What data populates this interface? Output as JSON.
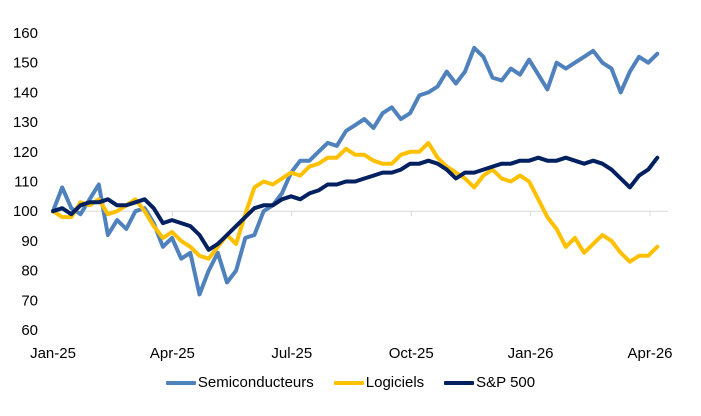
{
  "chart_data": {
    "type": "line",
    "title": "",
    "xlabel": "",
    "ylabel": "",
    "ylim": [
      60,
      160
    ],
    "yticks": [
      60,
      70,
      80,
      90,
      100,
      110,
      120,
      130,
      140,
      150,
      160
    ],
    "ytick_labels": [
      "60",
      "70",
      "80",
      "90",
      "100",
      "110",
      "120",
      "130",
      "140",
      "150",
      "160"
    ],
    "xticks": [
      "Jan-25",
      "Apr-25",
      "Jul-25",
      "Oct-25",
      "Jan-26",
      "Apr-26"
    ],
    "xaxis_crosses_at": 100,
    "grid": false,
    "legend_position": "bottom",
    "x_frequency": "weekly",
    "x_start": "2025-01-01",
    "x_weeks": [
      0,
      1,
      2,
      3,
      4,
      5,
      6,
      7,
      8,
      9,
      10,
      11,
      12,
      13,
      14,
      15,
      16,
      17,
      18,
      19,
      20,
      21,
      22,
      23,
      24,
      25,
      26,
      27,
      28,
      29,
      30,
      31,
      32,
      33,
      34,
      35,
      36,
      37,
      38,
      39,
      40,
      41,
      42,
      43,
      44,
      45,
      46,
      47,
      48,
      49,
      50,
      51,
      52,
      53,
      54,
      55,
      56,
      57,
      58,
      59,
      60,
      61,
      62,
      63,
      64,
      65,
      66
    ],
    "series": [
      {
        "name": "Semiconducteurs",
        "color": "#4F81BD",
        "values": [
          100,
          108,
          101,
          99,
          104,
          109,
          92,
          97,
          94,
          100,
          101,
          96,
          88,
          91,
          84,
          86,
          72,
          80,
          86,
          76,
          80,
          91,
          92,
          100,
          102,
          106,
          113,
          117,
          117,
          120,
          123,
          122,
          127,
          129,
          131,
          128,
          133,
          135,
          131,
          133,
          139,
          140,
          142,
          147,
          143,
          147,
          155,
          152,
          145,
          144,
          148,
          146,
          151,
          146,
          141,
          150,
          148,
          150,
          152,
          154,
          150,
          148,
          140,
          147,
          152,
          150,
          153
        ]
      },
      {
        "name": "Logiciels",
        "color": "#FFC000",
        "values": [
          100,
          98,
          98,
          103,
          102,
          104,
          99,
          100,
          102,
          104,
          100,
          95,
          91,
          93,
          90,
          88,
          85,
          84,
          88,
          92,
          89,
          99,
          108,
          110,
          109,
          111,
          113,
          112,
          115,
          116,
          118,
          118,
          121,
          119,
          119,
          117,
          116,
          116,
          119,
          120,
          120,
          123,
          118,
          115,
          113,
          111,
          108,
          112,
          114,
          111,
          110,
          112,
          110,
          104,
          98,
          94,
          88,
          91,
          86,
          89,
          92,
          90,
          86,
          83,
          85,
          85,
          88
        ]
      },
      {
        "name": "S&P 500",
        "color": "#002060",
        "values": [
          100,
          101,
          99,
          102,
          103,
          103,
          104,
          102,
          102,
          103,
          104,
          101,
          96,
          97,
          96,
          95,
          92,
          87,
          89,
          92,
          95,
          98,
          101,
          102,
          102,
          104,
          105,
          104,
          106,
          107,
          109,
          109,
          110,
          110,
          111,
          112,
          113,
          113,
          114,
          116,
          116,
          117,
          116,
          114,
          111,
          113,
          113,
          114,
          115,
          116,
          116,
          117,
          117,
          118,
          117,
          117,
          118,
          117,
          116,
          117,
          116,
          114,
          111,
          108,
          112,
          114,
          118
        ]
      }
    ]
  }
}
